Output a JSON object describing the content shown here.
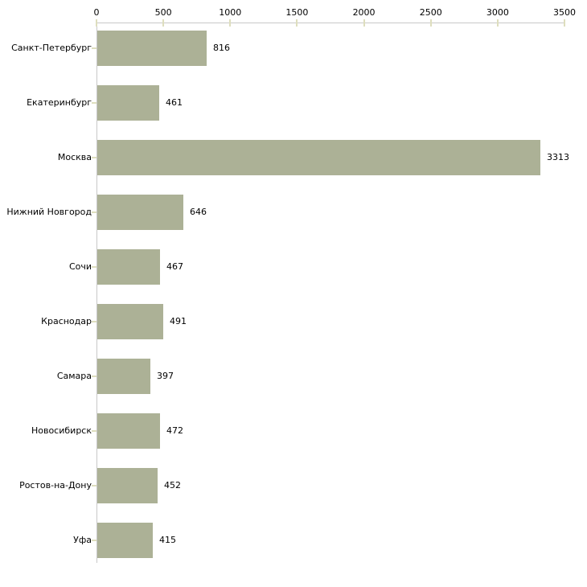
{
  "chart_data": {
    "type": "bar",
    "orientation": "horizontal",
    "title": "",
    "xlabel": "",
    "ylabel": "",
    "categories": [
      "Санкт-Петербург",
      "Екатеринбург",
      "Москва",
      "Нижний Новгород",
      "Сочи",
      "Краснодар",
      "Самара",
      "Новосибирск",
      "Ростов-на-Дону",
      "Уфа"
    ],
    "values": [
      816,
      461,
      3313,
      646,
      467,
      491,
      397,
      472,
      452,
      415
    ],
    "value_labels": [
      "816",
      "461",
      "3313",
      "646",
      "467",
      "491",
      "397",
      "472",
      "452",
      "415"
    ],
    "xlim": [
      0,
      3500
    ],
    "x_ticks": [
      0,
      500,
      1000,
      1500,
      2000,
      2500,
      3000,
      3500
    ],
    "x_tick_labels": [
      "0",
      "500",
      "1000",
      "1500",
      "2000",
      "2500",
      "3000",
      "3500"
    ],
    "grid": false,
    "legend": null,
    "axis_position": "top",
    "colors": {
      "bar": "#acb196",
      "axis_line": "#c8c8c8",
      "tick_mark": "#dedebe",
      "text": "#000000",
      "background": "#ffffff"
    }
  }
}
